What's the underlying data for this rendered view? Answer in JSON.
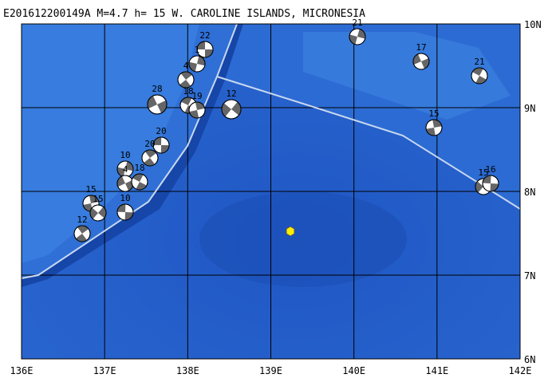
{
  "title": "E201612200149A M=4.7 h= 15 W. CAROLINE ISLANDS, MICRONESIA",
  "axes": {
    "x_labels": [
      "136E",
      "137E",
      "138E",
      "139E",
      "140E",
      "141E",
      "142E"
    ],
    "y_labels": [
      "10N",
      "9N",
      "8N",
      "7N",
      "6N"
    ]
  },
  "events": [
    {
      "label": "22"
    },
    {
      "label": "4"
    },
    {
      "label": "1"
    },
    {
      "label": "28"
    },
    {
      "label": "18"
    },
    {
      "label": "19"
    },
    {
      "label": "12"
    },
    {
      "label": "20"
    },
    {
      "label": "20"
    },
    {
      "label": "10"
    },
    {
      "label": "4"
    },
    {
      "label": "18"
    },
    {
      "label": "15"
    },
    {
      "label": "15"
    },
    {
      "label": "10"
    },
    {
      "label": "12"
    },
    {
      "label": "21"
    },
    {
      "label": "17"
    },
    {
      "label": "21"
    },
    {
      "label": "15"
    },
    {
      "label": "15"
    },
    {
      "label": "16"
    }
  ]
}
